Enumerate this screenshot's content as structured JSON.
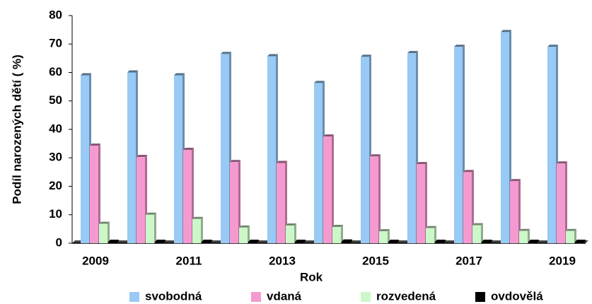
{
  "chart_data": {
    "type": "bar",
    "x_label": "Rok",
    "y_label": "Podíl narozených dětí ( %)",
    "categories": [
      "2009",
      null,
      "2011",
      null,
      "2013",
      null,
      "2015",
      null,
      "2017",
      null,
      "2019"
    ],
    "series": [
      {
        "name": "svobodná",
        "color": "#99c9f5",
        "values": [
          59,
          60,
          59,
          66.5,
          65.7,
          56.3,
          65.5,
          66.8,
          69,
          74.2,
          69
        ]
      },
      {
        "name": "vdaná",
        "color": "#f59ad0",
        "values": [
          34.3,
          30.3,
          32.8,
          28.5,
          28.2,
          37.5,
          30.5,
          27.8,
          25,
          21.8,
          28
        ]
      },
      {
        "name": "rozvedená",
        "color": "#ccf7c9",
        "values": [
          6.8,
          10,
          8.5,
          5.5,
          6.2,
          5.7,
          4.2,
          5.3,
          6.3,
          4.3,
          4.3
        ]
      },
      {
        "name": "ovdovělá",
        "color": "#000000",
        "values": [
          0.5,
          0.5,
          0.5,
          0.5,
          0.5,
          0.6,
          0.5,
          0.5,
          0.5,
          0.5,
          0.5
        ]
      }
    ],
    "ylim": [
      0,
      80
    ],
    "yticks": [
      0,
      10,
      20,
      30,
      40,
      50,
      60,
      70,
      80
    ],
    "legend": "bottom"
  }
}
